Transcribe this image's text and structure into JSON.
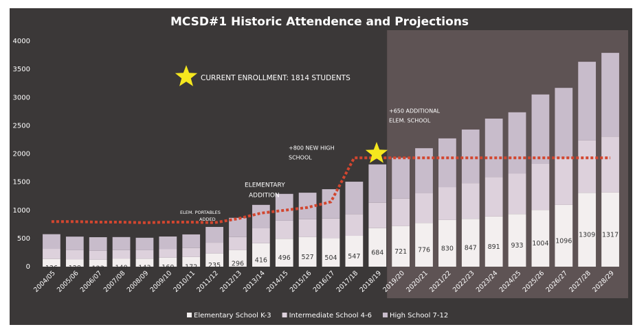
{
  "chart_data": {
    "type": "stacked_bar",
    "title": "MCSD#1 Historic Attendence and Projections",
    "categories": [
      "2004/05",
      "2005/06",
      "2006/07",
      "2007/08",
      "2008/09",
      "2009/10",
      "2010/11",
      "2011/12",
      "2012/13",
      "2013/14",
      "2014/15",
      "2015/16",
      "2016/17",
      "2017/18",
      "2018/19",
      "2019/20",
      "2020/21",
      "2021/22",
      "2022/23",
      "2023/24",
      "2024/25",
      "2025/26",
      "2026/27",
      "2027/28",
      "2028/29"
    ],
    "series": [
      {
        "name": "Elementary School K-3",
        "color": "#f3efef",
        "values": [
          136,
          128,
          123,
          140,
          143,
          160,
          172,
          235,
          296,
          416,
          496,
          527,
          504,
          547,
          684,
          721,
          776,
          830,
          847,
          891,
          933,
          1004,
          1096,
          1309,
          1317
        ]
      },
      {
        "name": "Intermediate School 4-6",
        "color": "#ddd1dc",
        "values": [
          180,
          165,
          160,
          155,
          150,
          150,
          160,
          190,
          230,
          270,
          320,
          315,
          350,
          385,
          450,
          485,
          530,
          580,
          635,
          695,
          720,
          820,
          830,
          930,
          990
        ]
      },
      {
        "name": "High School 7-12",
        "color": "#c8bccb",
        "values": [
          260,
          240,
          240,
          230,
          220,
          225,
          240,
          280,
          340,
          410,
          475,
          470,
          520,
          575,
          680,
          725,
          795,
          865,
          950,
          1040,
          1085,
          1230,
          1245,
          1395,
          1485
        ]
      }
    ],
    "capacity_line": {
      "color": "#d2462f",
      "values": [
        800,
        800,
        790,
        790,
        780,
        790,
        790,
        780,
        850,
        950,
        1000,
        1050,
        1150,
        1930,
        1930,
        1930,
        1930,
        1930,
        1930,
        1930,
        1930,
        1930,
        1930,
        1930,
        1930
      ]
    },
    "annotations": [
      "CURRENT ENROLLMENT: 1814 STUDENTS",
      "+650 ADDITIONAL",
      "ELEM. SCHOOL",
      "+800 NEW HIGH",
      "SCHOOL",
      "ELEMENTARY",
      "ADDITION",
      "ELEM. PORTABLES",
      "ADDED"
    ],
    "ylim": [
      0,
      4000
    ],
    "yticks": [
      0,
      500,
      1000,
      1500,
      2000,
      2500,
      3000,
      3500,
      4000
    ],
    "legend": "bottom"
  }
}
